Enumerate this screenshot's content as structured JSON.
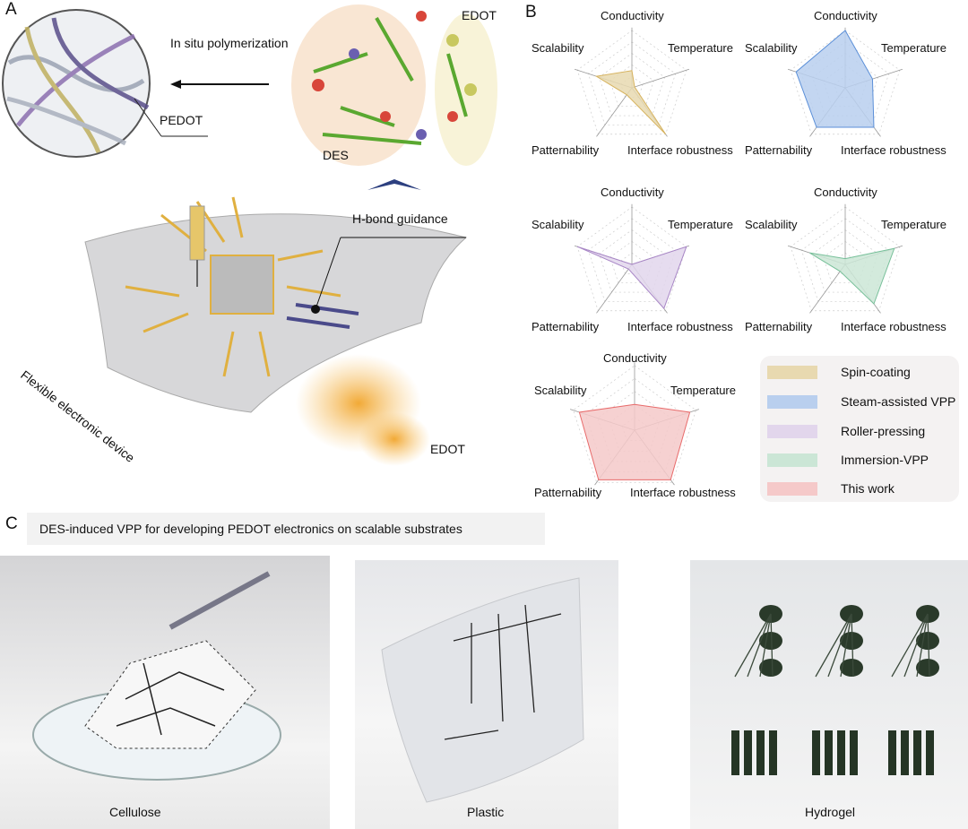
{
  "panels": {
    "a": "A",
    "b": "B",
    "c": "C"
  },
  "panel_a": {
    "in_situ": "In situ polymerization",
    "pedot": "PEDOT",
    "edot_top": "EDOT",
    "des": "DES",
    "hbond": "H-bond guidance",
    "flexible": "Flexible electronic device",
    "edot_bottom": "EDOT"
  },
  "panel_c": {
    "caption": "DES-induced VPP for developing PEDOT electronics on scalable substrates",
    "photos": [
      {
        "label": "Cellulose"
      },
      {
        "label": "Plastic"
      },
      {
        "label": "Hydrogel"
      }
    ]
  },
  "chart_data": {
    "type": "radar",
    "axes": [
      "Conductivity",
      "Temperature",
      "Interface robustness",
      "Patternability",
      "Scalability"
    ],
    "range": [
      0,
      1
    ],
    "series": [
      {
        "name": "Spin-coating",
        "color": "#e8d9b0",
        "stroke": "#d7b35e",
        "values": [
          0.3,
          0.05,
          1.0,
          0.15,
          0.65
        ]
      },
      {
        "name": "Steam-assisted VPP",
        "color": "#b9cfee",
        "stroke": "#5b8fd8",
        "values": [
          1.0,
          0.5,
          0.85,
          0.85,
          0.9
        ]
      },
      {
        "name": "Roller-pressing",
        "color": "#e2d6ec",
        "stroke": "#a886c6",
        "values": [
          0.0,
          1.0,
          0.95,
          0.1,
          1.0
        ]
      },
      {
        "name": "Immersion-VPP",
        "color": "#cbe6d6",
        "stroke": "#78c09a",
        "values": [
          0.1,
          0.9,
          0.85,
          0.15,
          0.65
        ]
      },
      {
        "name": "This work",
        "color": "#f5c9c9",
        "stroke": "#e86a6a",
        "values": [
          0.4,
          0.9,
          0.95,
          0.95,
          0.9
        ]
      }
    ]
  }
}
